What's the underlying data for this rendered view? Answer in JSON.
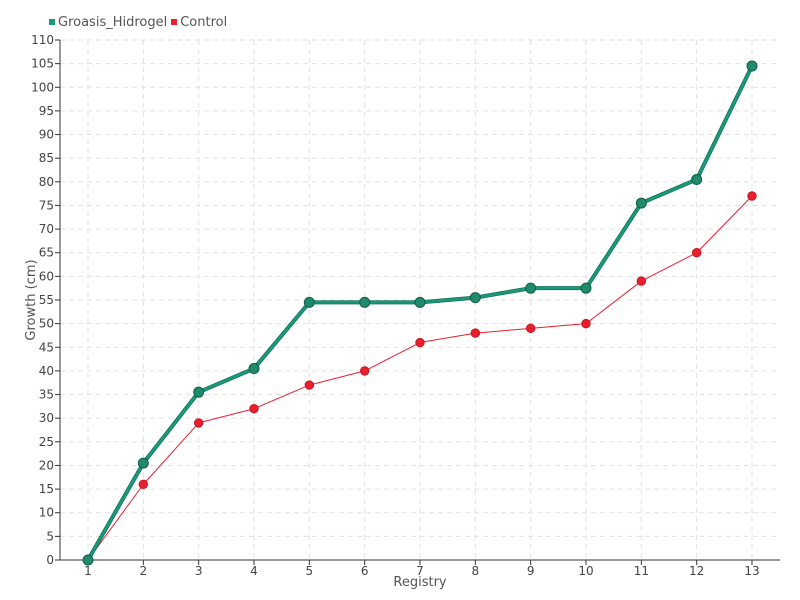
{
  "chart_data": {
    "type": "line",
    "title": "",
    "xlabel": "Registry",
    "ylabel": "Growth (cm)",
    "categories": [
      "1",
      "2",
      "3",
      "4",
      "5",
      "6",
      "7",
      "8",
      "9",
      "10",
      "11",
      "12",
      "13"
    ],
    "ylim": [
      0,
      110
    ],
    "ytick_step": 5,
    "grid": true,
    "legend_position": "top-left",
    "series": [
      {
        "name": "Groasis_Hidrogel",
        "color": "#1a9a7a",
        "values": [
          0,
          20.5,
          35.5,
          40.5,
          54.5,
          54.5,
          54.5,
          55.5,
          57.5,
          57.5,
          75.5,
          80.5,
          104.5
        ]
      },
      {
        "name": "Control",
        "color": "#e8202e",
        "values": [
          0,
          16,
          29,
          32,
          37,
          40,
          46,
          48,
          49,
          50,
          59,
          65,
          77
        ]
      }
    ]
  }
}
